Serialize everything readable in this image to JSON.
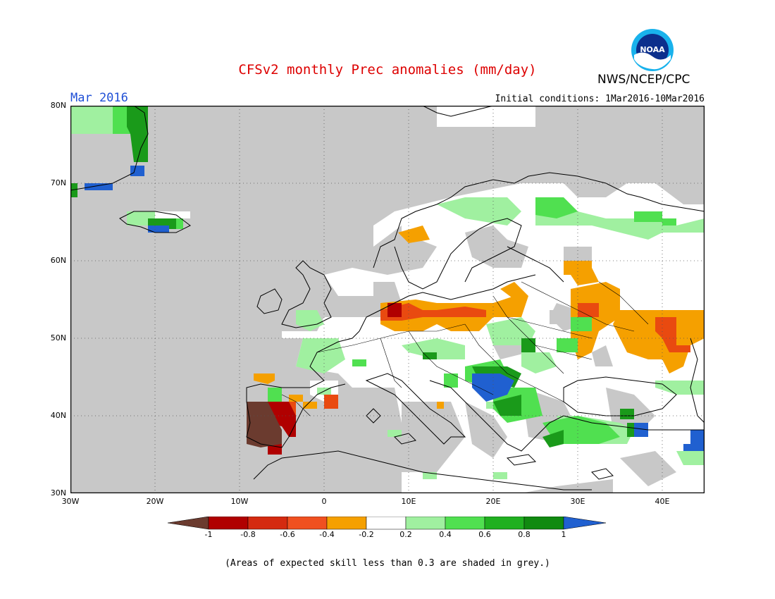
{
  "title": "CFSv2 monthly Prec anomalies (mm/day)",
  "agency": "NWS/NCEP/CPC",
  "logo_text": "NOAA",
  "month": "Mar 2016",
  "initial_conditions": "Initial conditions: 1Mar2016-10Mar2016",
  "lat_labels": [
    "80N",
    "70N",
    "60N",
    "50N",
    "40N",
    "30N"
  ],
  "lon_labels": [
    "30W",
    "20W",
    "10W",
    "0",
    "10E",
    "20E",
    "30E",
    "40E"
  ],
  "colorbar": {
    "labels": [
      "-1",
      "-0.8",
      "-0.6",
      "-0.4",
      "-0.2",
      "0.2",
      "0.4",
      "0.6",
      "0.8",
      "1"
    ],
    "colors": [
      "#6b3b2f",
      "#b00000",
      "#d42a10",
      "#f05020",
      "#f5a000",
      "#ffffff",
      "#a0f0a0",
      "#50e050",
      "#20b020",
      "#108a10",
      "#2060d0"
    ]
  },
  "note": "(Areas of expected skill less than 0.3 are shaded in grey.)",
  "colors": {
    "title": "#dd0000",
    "month": "#1f4fd6",
    "grey": "#c8c8c8"
  }
}
